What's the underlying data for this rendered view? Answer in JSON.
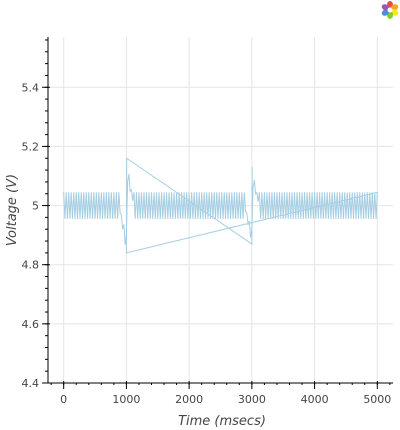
{
  "toolbar": {
    "logo_icon": "bokeh-logo-icon"
  },
  "chart_data": {
    "type": "line",
    "title": "",
    "xlabel": "Time (msecs)",
    "ylabel": "Voltage (V)",
    "xlim": [
      -250,
      5250
    ],
    "ylim": [
      4.4,
      5.57
    ],
    "x_ticks": [
      0,
      1000,
      2000,
      3000,
      4000,
      5000
    ],
    "y_ticks": [
      4.4,
      4.6,
      4.8,
      5,
      5.2,
      5.4
    ],
    "x_tick_labels": [
      "0",
      "1000",
      "2000",
      "3000",
      "4000",
      "5000"
    ],
    "y_tick_labels": [
      "4.4",
      "4.6",
      "4.8",
      "5",
      "5.2",
      "5.4"
    ],
    "grid": true,
    "legend": "none",
    "series": [
      {
        "color": "#a6cee3",
        "baseline": 5.0,
        "ripple_amplitude": 0.045,
        "ripple_period_ms": 40,
        "transients": [
          {
            "x": 1000,
            "min": 4.84,
            "max": 5.16
          },
          {
            "x": 3000,
            "min": 4.87,
            "max": 5.13
          }
        ],
        "x_range": [
          0,
          5000
        ]
      }
    ]
  }
}
